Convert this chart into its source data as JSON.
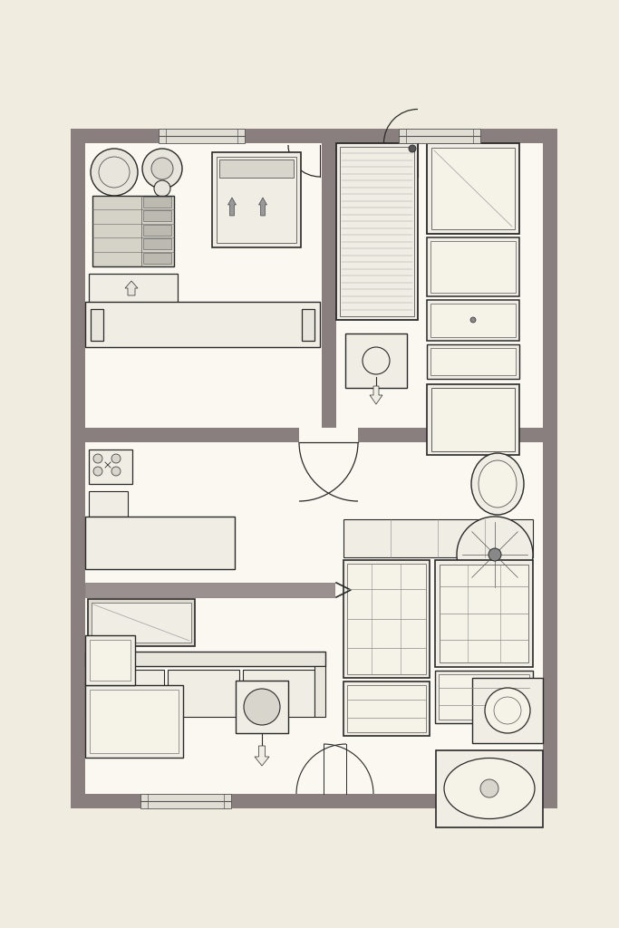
{
  "bg_color": "#f0ede0",
  "wall_color": "#8a7f7f",
  "floor_color": "#faf8f0",
  "fig_width": 6.83,
  "fig_height": 10.24,
  "line_color": "#2a2a2a",
  "light_fill": "#f0ede4",
  "mid_fill": "#e8e5dc",
  "dark_fill": "#d8d5cc"
}
